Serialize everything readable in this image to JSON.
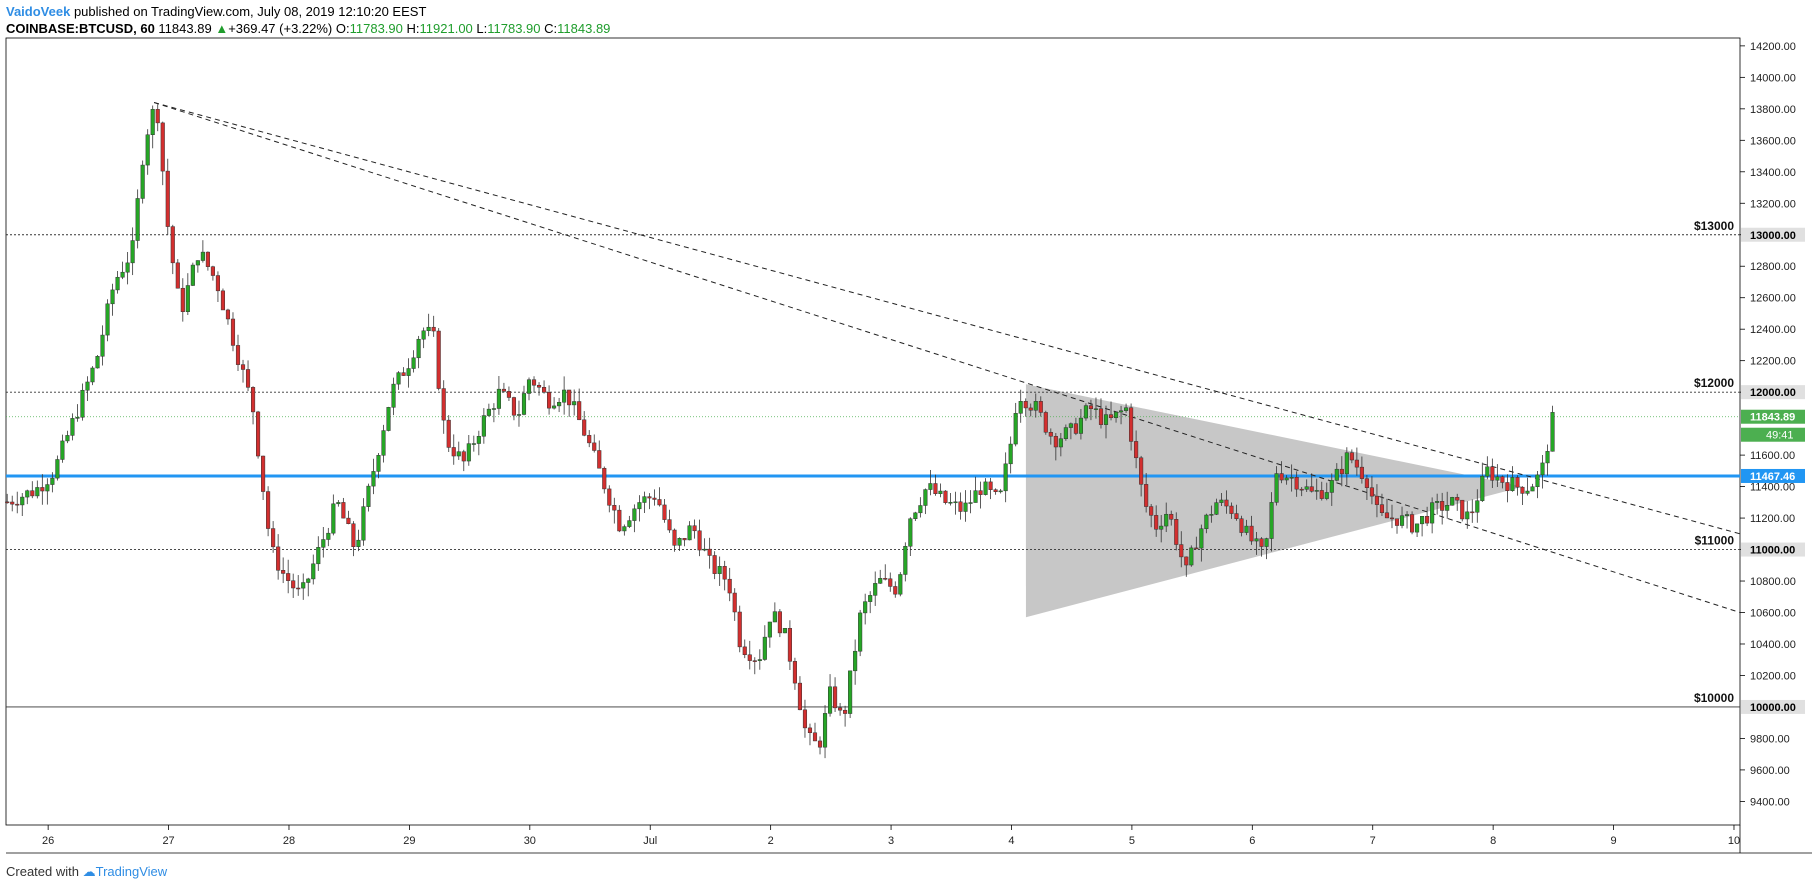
{
  "header": {
    "author": "VaidoVeek",
    "published_text": "published on TradingView.com, July 08, 2019 12:10:20 EEST",
    "symbol": "COINBASE:BTCUSD, 60",
    "last": "11843.89",
    "change": "+369.47 (+3.22%)",
    "o_label": "O:",
    "o_value": "11783.90",
    "h_label": "H:",
    "h_value": "11921.00",
    "l_label": "L:",
    "l_value": "11783.90",
    "c_label": "C:",
    "c_value": "11843.89"
  },
  "footer": {
    "created_with": "Created with",
    "brand": "TradingView"
  },
  "colors": {
    "up": "#26a626",
    "down": "#d32f2f",
    "support": "#2196f3",
    "current_price": "#4caf50",
    "triangle": "#bdbdbd"
  },
  "chart_data": {
    "type": "candlestick",
    "x_ticks": [
      {
        "day": 26,
        "label": "26"
      },
      {
        "day": 27,
        "label": "27"
      },
      {
        "day": 28,
        "label": "28"
      },
      {
        "day": 29,
        "label": "29"
      },
      {
        "day": 30,
        "label": "30"
      },
      {
        "day": 31,
        "label": "Jul"
      },
      {
        "day": 32,
        "label": "2"
      },
      {
        "day": 33,
        "label": "3"
      },
      {
        "day": 34,
        "label": "4"
      },
      {
        "day": 35,
        "label": "5"
      },
      {
        "day": 36,
        "label": "6"
      },
      {
        "day": 37,
        "label": "7"
      },
      {
        "day": 38,
        "label": "8"
      },
      {
        "day": 39,
        "label": "9"
      },
      {
        "day": 40,
        "label": "10"
      }
    ],
    "y_ticks": [
      "9400.00",
      "9600.00",
      "9800.00",
      "10200.00",
      "10400.00",
      "10600.00",
      "10800.00",
      "11000.00",
      "11200.00",
      "11400.00",
      "11600.00",
      "12000.00",
      "12200.00",
      "12400.00",
      "12600.00",
      "12800.00",
      "13000.00",
      "13200.00",
      "13400.00",
      "13600.00",
      "13800.00",
      "14000.00",
      "14200.00"
    ],
    "ylim": [
      9250,
      14250
    ],
    "xlim": [
      25.65,
      40.05
    ],
    "price_path": [
      [
        25.65,
        11300
      ],
      [
        25.9,
        11380
      ],
      [
        26.05,
        11500
      ],
      [
        26.25,
        11900
      ],
      [
        26.4,
        12200
      ],
      [
        26.55,
        12700
      ],
      [
        26.7,
        12900
      ],
      [
        26.8,
        13600
      ],
      [
        26.9,
        13850
      ],
      [
        27.0,
        13000
      ],
      [
        27.1,
        12500
      ],
      [
        27.25,
        12900
      ],
      [
        27.4,
        12700
      ],
      [
        27.55,
        12300
      ],
      [
        27.7,
        11900
      ],
      [
        27.85,
        11000
      ],
      [
        27.95,
        10850
      ],
      [
        28.1,
        10700
      ],
      [
        28.25,
        11000
      ],
      [
        28.4,
        11300
      ],
      [
        28.55,
        11000
      ],
      [
        28.7,
        11500
      ],
      [
        28.85,
        12000
      ],
      [
        29.0,
        12200
      ],
      [
        29.1,
        12400
      ],
      [
        29.2,
        12350
      ],
      [
        29.3,
        11700
      ],
      [
        29.45,
        11550
      ],
      [
        29.6,
        11800
      ],
      [
        29.75,
        12000
      ],
      [
        29.9,
        11850
      ],
      [
        30.0,
        12100
      ],
      [
        30.15,
        11950
      ],
      [
        30.3,
        12000
      ],
      [
        30.45,
        11750
      ],
      [
        30.6,
        11450
      ],
      [
        30.75,
        11150
      ],
      [
        30.9,
        11300
      ],
      [
        31.05,
        11350
      ],
      [
        31.2,
        11000
      ],
      [
        31.35,
        11150
      ],
      [
        31.5,
        10900
      ],
      [
        31.65,
        10800
      ],
      [
        31.75,
        10400
      ],
      [
        31.9,
        10300
      ],
      [
        32.0,
        10600
      ],
      [
        32.1,
        10500
      ],
      [
        32.2,
        10200
      ],
      [
        32.3,
        9800
      ],
      [
        32.4,
        9750
      ],
      [
        32.5,
        10100
      ],
      [
        32.6,
        9900
      ],
      [
        32.75,
        10600
      ],
      [
        32.9,
        10800
      ],
      [
        33.05,
        10750
      ],
      [
        33.15,
        11200
      ],
      [
        33.3,
        11400
      ],
      [
        33.45,
        11300
      ],
      [
        33.6,
        11250
      ],
      [
        33.75,
        11400
      ],
      [
        33.9,
        11300
      ],
      [
        34.0,
        11700
      ],
      [
        34.05,
        12000
      ],
      [
        34.2,
        11900
      ],
      [
        34.35,
        11700
      ],
      [
        34.5,
        11750
      ],
      [
        34.65,
        11900
      ],
      [
        34.8,
        11800
      ],
      [
        34.95,
        11900
      ],
      [
        35.1,
        11300
      ],
      [
        35.2,
        11150
      ],
      [
        35.3,
        11250
      ],
      [
        35.45,
        10850
      ],
      [
        35.55,
        11100
      ],
      [
        35.7,
        11300
      ],
      [
        35.85,
        11250
      ],
      [
        35.95,
        11100
      ],
      [
        36.1,
        10950
      ],
      [
        36.2,
        11500
      ],
      [
        36.35,
        11450
      ],
      [
        36.5,
        11350
      ],
      [
        36.65,
        11400
      ],
      [
        36.8,
        11600
      ],
      [
        36.95,
        11450
      ],
      [
        37.05,
        11200
      ],
      [
        37.2,
        11200
      ],
      [
        37.35,
        11150
      ],
      [
        37.5,
        11250
      ],
      [
        37.65,
        11300
      ],
      [
        37.8,
        11200
      ],
      [
        37.95,
        11500
      ],
      [
        38.05,
        11450
      ],
      [
        38.2,
        11400
      ],
      [
        38.3,
        11400
      ],
      [
        38.4,
        11480
      ],
      [
        38.5,
        11843
      ]
    ],
    "levels": [
      {
        "price": 13000,
        "label": "$13000",
        "tag": "13000.00"
      },
      {
        "price": 12000,
        "label": "$12000",
        "tag": "12000.00"
      },
      {
        "price": 11000,
        "label": "$11000",
        "tag": "11000.00"
      },
      {
        "price": 10000,
        "label": "$10000",
        "tag": "10000.00"
      }
    ],
    "support": {
      "price": 11467.46,
      "tag": "11467.46"
    },
    "current": {
      "price": 11843.89,
      "tag": "11843.89",
      "countdown": "49:41"
    },
    "trendlines": [
      {
        "x1": 26.88,
        "y1": 13840,
        "x2": 40.05,
        "y2": 10600
      },
      {
        "x1": 26.88,
        "y1": 13840,
        "x2": 40.05,
        "y2": 11100
      }
    ],
    "triangle": [
      [
        34.12,
        12050
      ],
      [
        38.25,
        11400
      ],
      [
        34.12,
        10570
      ]
    ]
  }
}
